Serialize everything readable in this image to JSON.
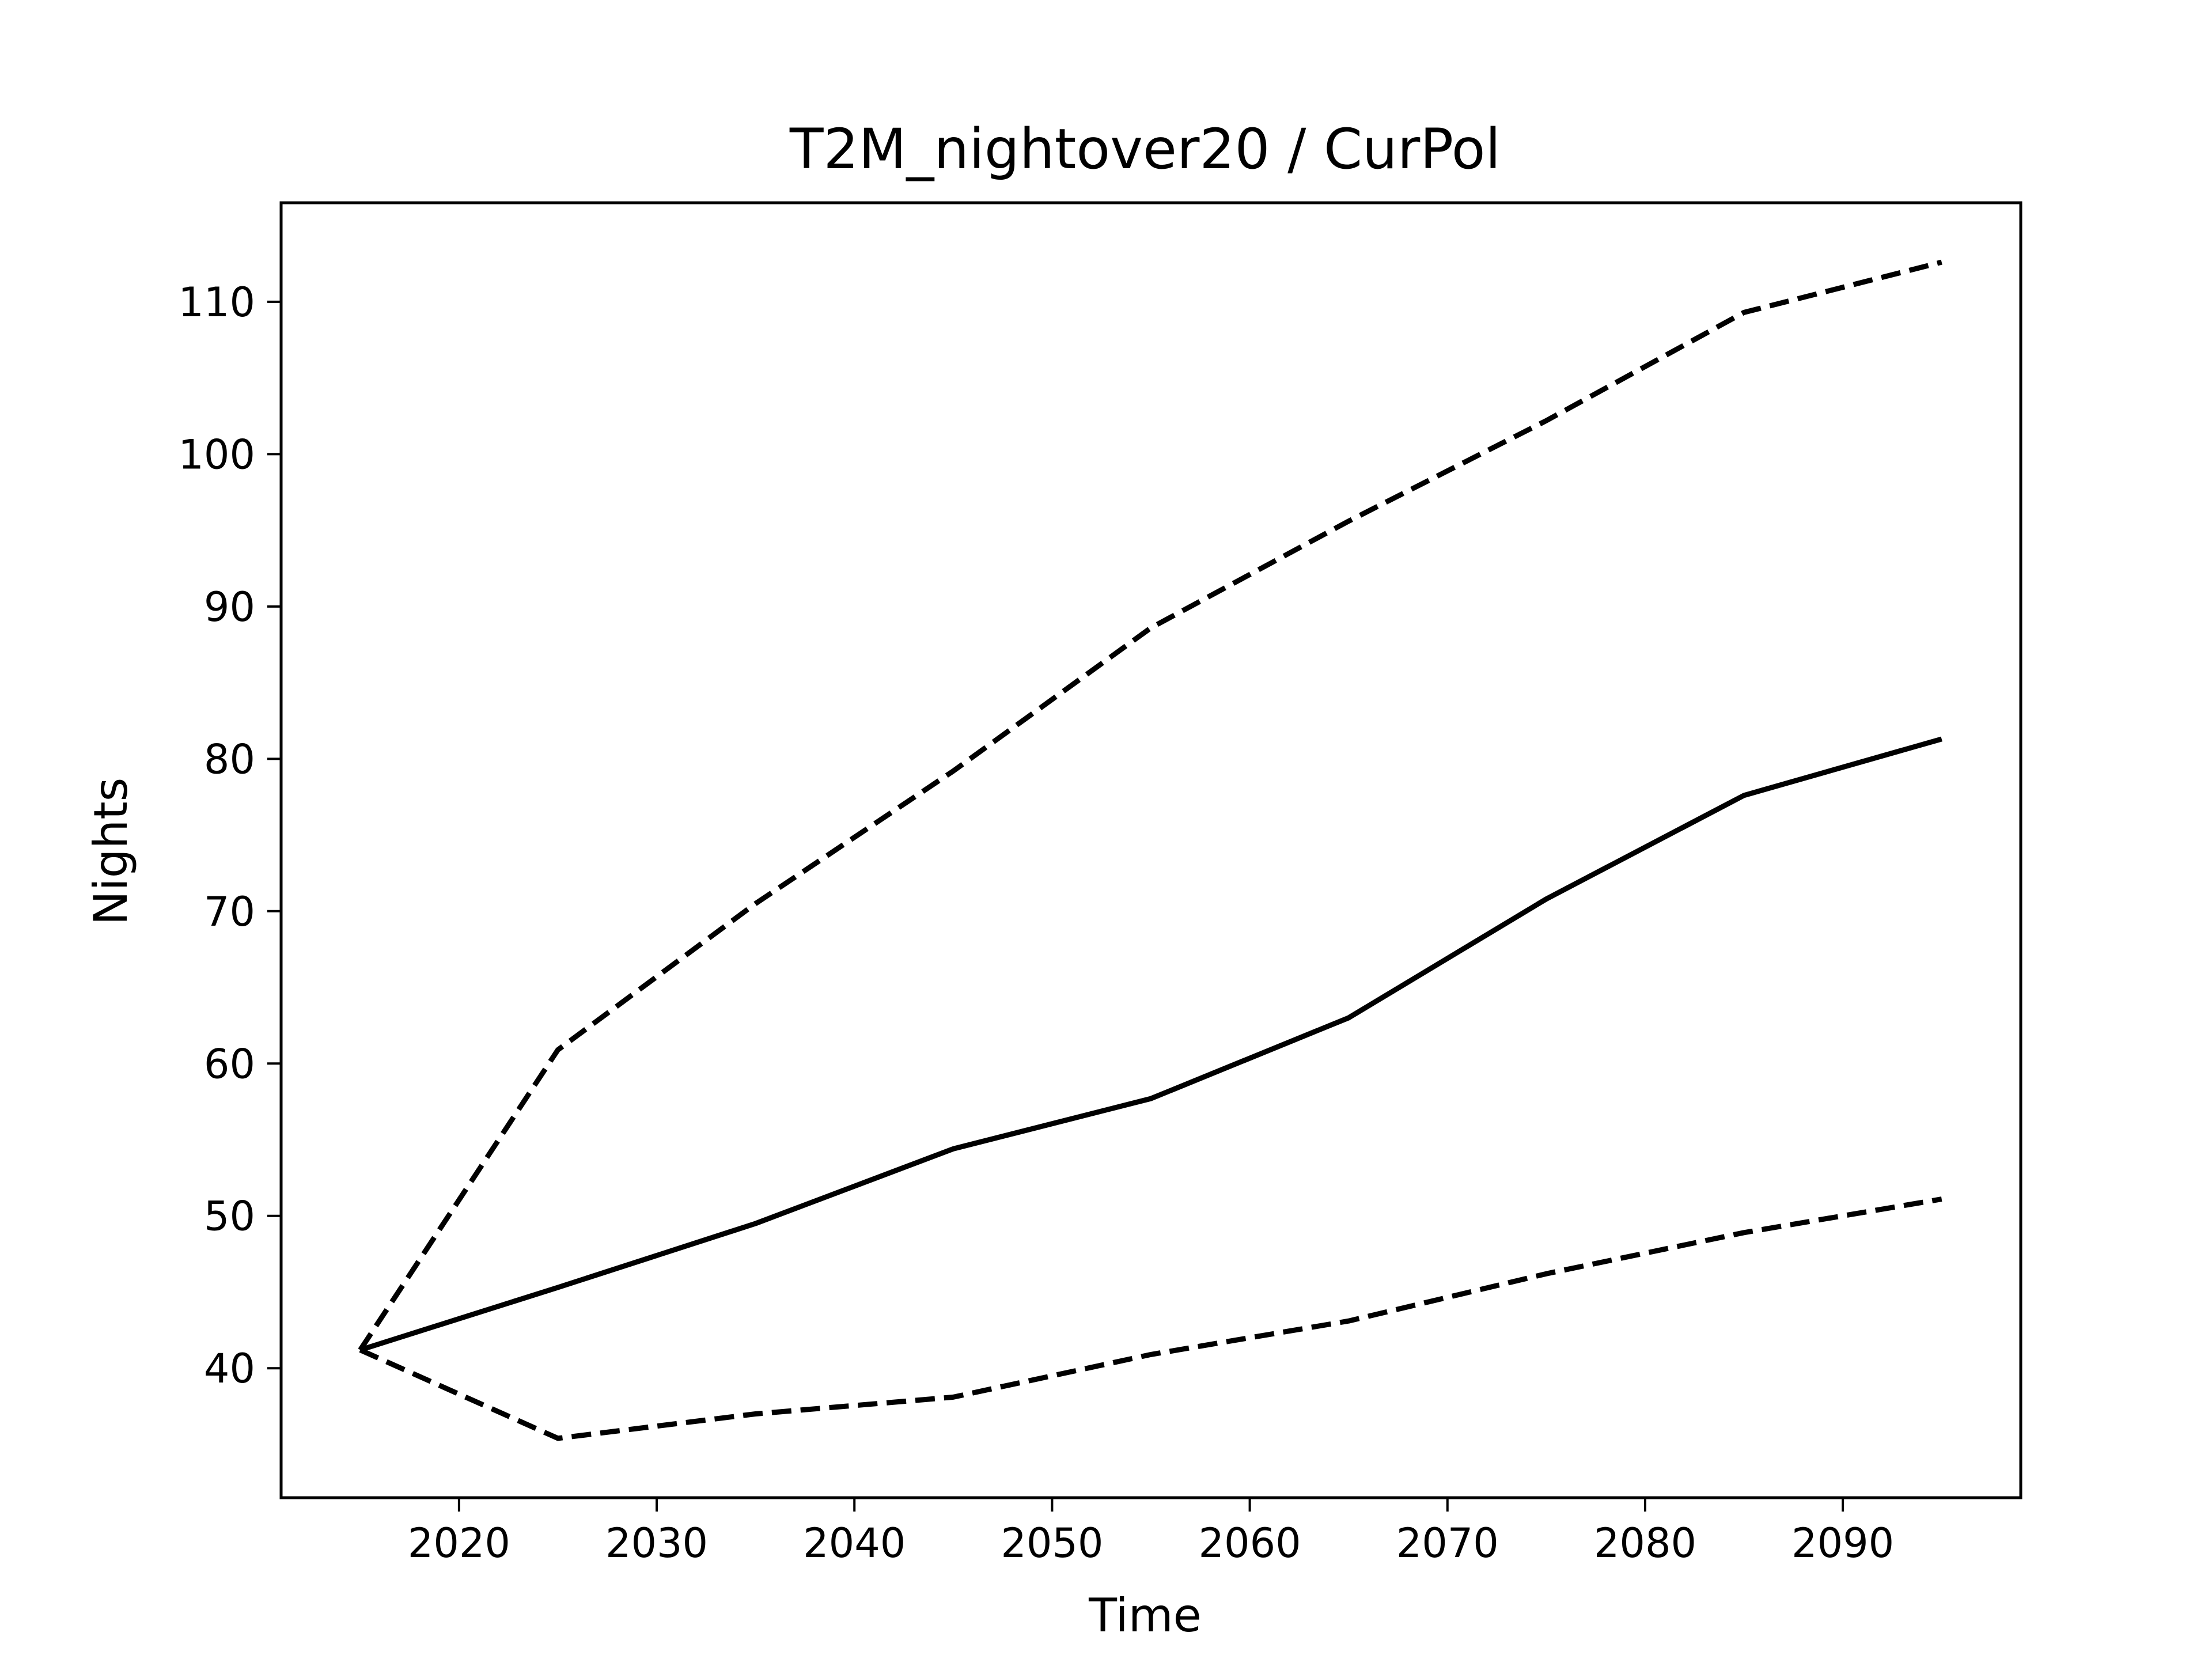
{
  "chart_data": {
    "type": "line",
    "title": "T2M_nightover20 / CurPol",
    "xlabel": "Time",
    "ylabel": "Nights",
    "xlim": [
      2011,
      2099
    ],
    "ylim": [
      31.5,
      116.5
    ],
    "xticks": [
      2020,
      2030,
      2040,
      2050,
      2060,
      2070,
      2080,
      2090
    ],
    "yticks": [
      40,
      50,
      60,
      70,
      80,
      90,
      100,
      110
    ],
    "grid": false,
    "legend": "none",
    "x": [
      2015,
      2025,
      2035,
      2045,
      2055,
      2065,
      2075,
      2085,
      2095
    ],
    "series": [
      {
        "style": "solid",
        "color": "#000000",
        "values": [
          41.2,
          45.3,
          49.5,
          54.4,
          57.7,
          63.0,
          70.8,
          77.6,
          81.3
        ]
      },
      {
        "style": "dashed",
        "color": "#000000",
        "values": [
          41.2,
          60.9,
          70.5,
          79.2,
          88.6,
          95.6,
          102.2,
          109.3,
          112.6
        ]
      },
      {
        "style": "dashed",
        "color": "#000000",
        "values": [
          41.2,
          35.4,
          37.0,
          38.1,
          40.9,
          43.1,
          46.2,
          48.9,
          51.1
        ]
      }
    ]
  }
}
